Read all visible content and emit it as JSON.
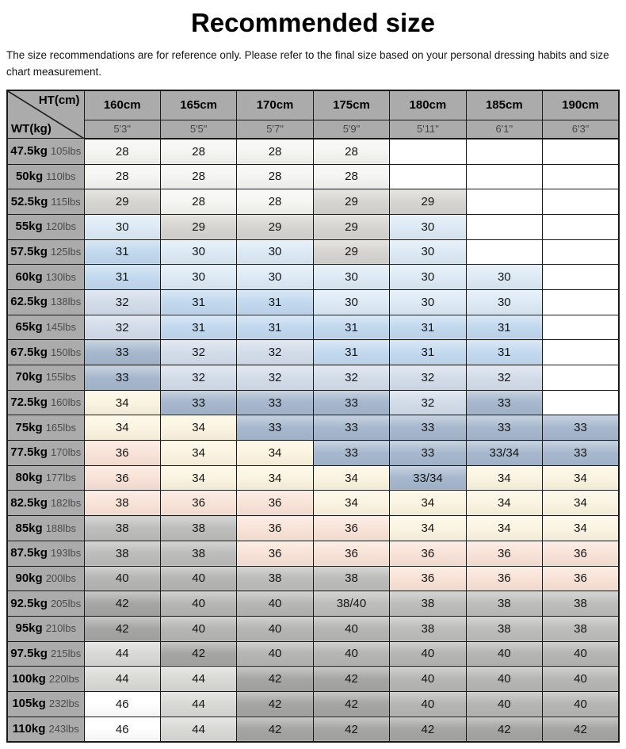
{
  "chart_data": {
    "type": "table",
    "title": "Recommended size",
    "note": "The size recommendations are for reference only. Please refer to the final size based on your personal dressing habits and size chart measurement.",
    "corner": {
      "top_label": "HT(cm)",
      "bottom_label": "WT(kg)"
    },
    "columns": [
      {
        "cm": "160cm",
        "ft": "5'3\""
      },
      {
        "cm": "165cm",
        "ft": "5'5\""
      },
      {
        "cm": "170cm",
        "ft": "5'7\""
      },
      {
        "cm": "175cm",
        "ft": "5'9\""
      },
      {
        "cm": "180cm",
        "ft": "5'11\""
      },
      {
        "cm": "185cm",
        "ft": "6'1\""
      },
      {
        "cm": "190cm",
        "ft": "6'3\""
      }
    ],
    "palette": {
      "header_bg": "#ababab",
      "border": "#1a1a1a",
      "off": "#f5f5f2",
      "g29": "#d6d5d1",
      "b30": "#ddeaf6",
      "b31": "#c3d9ef",
      "b32": "#d3dcea",
      "b33": "#a7b8ce",
      "cream": "#fbf4e0",
      "pink": "#f9e3d8",
      "g38": "#bdbdbb",
      "g40": "#b6b6b4",
      "g42": "#a6a6a4",
      "g44": "#d9d9d6",
      "white": "#ffffff"
    },
    "rows": [
      {
        "kg": "47.5kg",
        "lbs": "105lbs",
        "cells": [
          {
            "v": "28",
            "c": "off"
          },
          {
            "v": "28",
            "c": "off"
          },
          {
            "v": "28",
            "c": "off"
          },
          {
            "v": "28",
            "c": "off"
          },
          {
            "v": "",
            "c": "white"
          },
          {
            "v": "",
            "c": "white"
          },
          {
            "v": "",
            "c": "white"
          }
        ]
      },
      {
        "kg": "50kg",
        "lbs": "110lbs",
        "cells": [
          {
            "v": "28",
            "c": "off"
          },
          {
            "v": "28",
            "c": "off"
          },
          {
            "v": "28",
            "c": "off"
          },
          {
            "v": "28",
            "c": "off"
          },
          {
            "v": "",
            "c": "white"
          },
          {
            "v": "",
            "c": "white"
          },
          {
            "v": "",
            "c": "white"
          }
        ]
      },
      {
        "kg": "52.5kg",
        "lbs": "115lbs",
        "cells": [
          {
            "v": "29",
            "c": "g29"
          },
          {
            "v": "28",
            "c": "off"
          },
          {
            "v": "28",
            "c": "off"
          },
          {
            "v": "29",
            "c": "g29"
          },
          {
            "v": "29",
            "c": "g29"
          },
          {
            "v": "",
            "c": "white"
          },
          {
            "v": "",
            "c": "white"
          }
        ]
      },
      {
        "kg": "55kg",
        "lbs": "120lbs",
        "cells": [
          {
            "v": "30",
            "c": "b30"
          },
          {
            "v": "29",
            "c": "g29"
          },
          {
            "v": "29",
            "c": "g29"
          },
          {
            "v": "29",
            "c": "g29"
          },
          {
            "v": "30",
            "c": "b30"
          },
          {
            "v": "",
            "c": "white"
          },
          {
            "v": "",
            "c": "white"
          }
        ]
      },
      {
        "kg": "57.5kg",
        "lbs": "125lbs",
        "cells": [
          {
            "v": "31",
            "c": "b31"
          },
          {
            "v": "30",
            "c": "b30"
          },
          {
            "v": "30",
            "c": "b30"
          },
          {
            "v": "29",
            "c": "g29"
          },
          {
            "v": "30",
            "c": "b30"
          },
          {
            "v": "",
            "c": "white"
          },
          {
            "v": "",
            "c": "white"
          }
        ]
      },
      {
        "kg": "60kg",
        "lbs": "130lbs",
        "cells": [
          {
            "v": "31",
            "c": "b31"
          },
          {
            "v": "30",
            "c": "b30"
          },
          {
            "v": "30",
            "c": "b30"
          },
          {
            "v": "30",
            "c": "b30"
          },
          {
            "v": "30",
            "c": "b30"
          },
          {
            "v": "30",
            "c": "b30"
          },
          {
            "v": "",
            "c": "white"
          }
        ]
      },
      {
        "kg": "62.5kg",
        "lbs": "138lbs",
        "cells": [
          {
            "v": "32",
            "c": "b32"
          },
          {
            "v": "31",
            "c": "b31"
          },
          {
            "v": "31",
            "c": "b31"
          },
          {
            "v": "30",
            "c": "b30"
          },
          {
            "v": "30",
            "c": "b30"
          },
          {
            "v": "30",
            "c": "b30"
          },
          {
            "v": "",
            "c": "white"
          }
        ]
      },
      {
        "kg": "65kg",
        "lbs": "145lbs",
        "cells": [
          {
            "v": "32",
            "c": "b32"
          },
          {
            "v": "31",
            "c": "b31"
          },
          {
            "v": "31",
            "c": "b31"
          },
          {
            "v": "31",
            "c": "b31"
          },
          {
            "v": "31",
            "c": "b31"
          },
          {
            "v": "31",
            "c": "b31"
          },
          {
            "v": "",
            "c": "white"
          }
        ]
      },
      {
        "kg": "67.5kg",
        "lbs": "150lbs",
        "cells": [
          {
            "v": "33",
            "c": "b33"
          },
          {
            "v": "32",
            "c": "b32"
          },
          {
            "v": "32",
            "c": "b32"
          },
          {
            "v": "31",
            "c": "b31"
          },
          {
            "v": "31",
            "c": "b31"
          },
          {
            "v": "31",
            "c": "b31"
          },
          {
            "v": "",
            "c": "white"
          }
        ]
      },
      {
        "kg": "70kg",
        "lbs": "155lbs",
        "cells": [
          {
            "v": "33",
            "c": "b33"
          },
          {
            "v": "32",
            "c": "b32"
          },
          {
            "v": "32",
            "c": "b32"
          },
          {
            "v": "32",
            "c": "b32"
          },
          {
            "v": "32",
            "c": "b32"
          },
          {
            "v": "32",
            "c": "b32"
          },
          {
            "v": "",
            "c": "white"
          }
        ]
      },
      {
        "kg": "72.5kg",
        "lbs": "160lbs",
        "cells": [
          {
            "v": "34",
            "c": "cream"
          },
          {
            "v": "33",
            "c": "b33"
          },
          {
            "v": "33",
            "c": "b33"
          },
          {
            "v": "33",
            "c": "b33"
          },
          {
            "v": "32",
            "c": "b32"
          },
          {
            "v": "33",
            "c": "b33"
          },
          {
            "v": "",
            "c": "white"
          }
        ]
      },
      {
        "kg": "75kg",
        "lbs": "165lbs",
        "cells": [
          {
            "v": "34",
            "c": "cream"
          },
          {
            "v": "34",
            "c": "cream"
          },
          {
            "v": "33",
            "c": "b33"
          },
          {
            "v": "33",
            "c": "b33"
          },
          {
            "v": "33",
            "c": "b33"
          },
          {
            "v": "33",
            "c": "b33"
          },
          {
            "v": "33",
            "c": "b33"
          }
        ]
      },
      {
        "kg": "77.5kg",
        "lbs": "170lbs",
        "cells": [
          {
            "v": "36",
            "c": "pink"
          },
          {
            "v": "34",
            "c": "cream"
          },
          {
            "v": "34",
            "c": "cream"
          },
          {
            "v": "33",
            "c": "b33"
          },
          {
            "v": "33",
            "c": "b33"
          },
          {
            "v": "33/34",
            "c": "b33"
          },
          {
            "v": "33",
            "c": "b33"
          }
        ]
      },
      {
        "kg": "80kg",
        "lbs": "177lbs",
        "cells": [
          {
            "v": "36",
            "c": "pink"
          },
          {
            "v": "34",
            "c": "cream"
          },
          {
            "v": "34",
            "c": "cream"
          },
          {
            "v": "34",
            "c": "cream"
          },
          {
            "v": "33/34",
            "c": "b33"
          },
          {
            "v": "34",
            "c": "cream"
          },
          {
            "v": "34",
            "c": "cream"
          }
        ]
      },
      {
        "kg": "82.5kg",
        "lbs": "182lbs",
        "cells": [
          {
            "v": "38",
            "c": "pink"
          },
          {
            "v": "36",
            "c": "pink"
          },
          {
            "v": "36",
            "c": "pink"
          },
          {
            "v": "34",
            "c": "cream"
          },
          {
            "v": "34",
            "c": "cream"
          },
          {
            "v": "34",
            "c": "cream"
          },
          {
            "v": "34",
            "c": "cream"
          }
        ]
      },
      {
        "kg": "85kg",
        "lbs": "188lbs",
        "cells": [
          {
            "v": "38",
            "c": "g38"
          },
          {
            "v": "38",
            "c": "g38"
          },
          {
            "v": "36",
            "c": "pink"
          },
          {
            "v": "36",
            "c": "pink"
          },
          {
            "v": "34",
            "c": "cream"
          },
          {
            "v": "34",
            "c": "cream"
          },
          {
            "v": "34",
            "c": "cream"
          }
        ]
      },
      {
        "kg": "87.5kg",
        "lbs": "193lbs",
        "cells": [
          {
            "v": "38",
            "c": "g38"
          },
          {
            "v": "38",
            "c": "g38"
          },
          {
            "v": "36",
            "c": "pink"
          },
          {
            "v": "36",
            "c": "pink"
          },
          {
            "v": "36",
            "c": "pink"
          },
          {
            "v": "36",
            "c": "pink"
          },
          {
            "v": "36",
            "c": "pink"
          }
        ]
      },
      {
        "kg": "90kg",
        "lbs": "200lbs",
        "cells": [
          {
            "v": "40",
            "c": "g40"
          },
          {
            "v": "40",
            "c": "g40"
          },
          {
            "v": "38",
            "c": "g38"
          },
          {
            "v": "38",
            "c": "g38"
          },
          {
            "v": "36",
            "c": "pink"
          },
          {
            "v": "36",
            "c": "pink"
          },
          {
            "v": "36",
            "c": "pink"
          }
        ]
      },
      {
        "kg": "92.5kg",
        "lbs": "205lbs",
        "cells": [
          {
            "v": "42",
            "c": "g42"
          },
          {
            "v": "40",
            "c": "g40"
          },
          {
            "v": "40",
            "c": "g40"
          },
          {
            "v": "38/40",
            "c": "g38"
          },
          {
            "v": "38",
            "c": "g38"
          },
          {
            "v": "38",
            "c": "g38"
          },
          {
            "v": "38",
            "c": "g38"
          }
        ]
      },
      {
        "kg": "95kg",
        "lbs": "210lbs",
        "cells": [
          {
            "v": "42",
            "c": "g42"
          },
          {
            "v": "40",
            "c": "g40"
          },
          {
            "v": "40",
            "c": "g40"
          },
          {
            "v": "40",
            "c": "g40"
          },
          {
            "v": "38",
            "c": "g38"
          },
          {
            "v": "38",
            "c": "g38"
          },
          {
            "v": "38",
            "c": "g38"
          }
        ]
      },
      {
        "kg": "97.5kg",
        "lbs": "215lbs",
        "cells": [
          {
            "v": "44",
            "c": "g44"
          },
          {
            "v": "42",
            "c": "g42"
          },
          {
            "v": "40",
            "c": "g40"
          },
          {
            "v": "40",
            "c": "g40"
          },
          {
            "v": "40",
            "c": "g40"
          },
          {
            "v": "40",
            "c": "g40"
          },
          {
            "v": "40",
            "c": "g40"
          }
        ]
      },
      {
        "kg": "100kg",
        "lbs": "220lbs",
        "cells": [
          {
            "v": "44",
            "c": "g44"
          },
          {
            "v": "44",
            "c": "g44"
          },
          {
            "v": "42",
            "c": "g42"
          },
          {
            "v": "42",
            "c": "g42"
          },
          {
            "v": "40",
            "c": "g40"
          },
          {
            "v": "40",
            "c": "g40"
          },
          {
            "v": "40",
            "c": "g40"
          }
        ]
      },
      {
        "kg": "105kg",
        "lbs": "232lbs",
        "cells": [
          {
            "v": "46",
            "c": "white"
          },
          {
            "v": "44",
            "c": "g44"
          },
          {
            "v": "42",
            "c": "g42"
          },
          {
            "v": "42",
            "c": "g42"
          },
          {
            "v": "40",
            "c": "g40"
          },
          {
            "v": "40",
            "c": "g40"
          },
          {
            "v": "40",
            "c": "g40"
          }
        ]
      },
      {
        "kg": "110kg",
        "lbs": "243lbs",
        "cells": [
          {
            "v": "46",
            "c": "white"
          },
          {
            "v": "44",
            "c": "g44"
          },
          {
            "v": "42",
            "c": "g42"
          },
          {
            "v": "42",
            "c": "g42"
          },
          {
            "v": "42",
            "c": "g42"
          },
          {
            "v": "42",
            "c": "g42"
          },
          {
            "v": "42",
            "c": "g42"
          }
        ]
      }
    ]
  }
}
